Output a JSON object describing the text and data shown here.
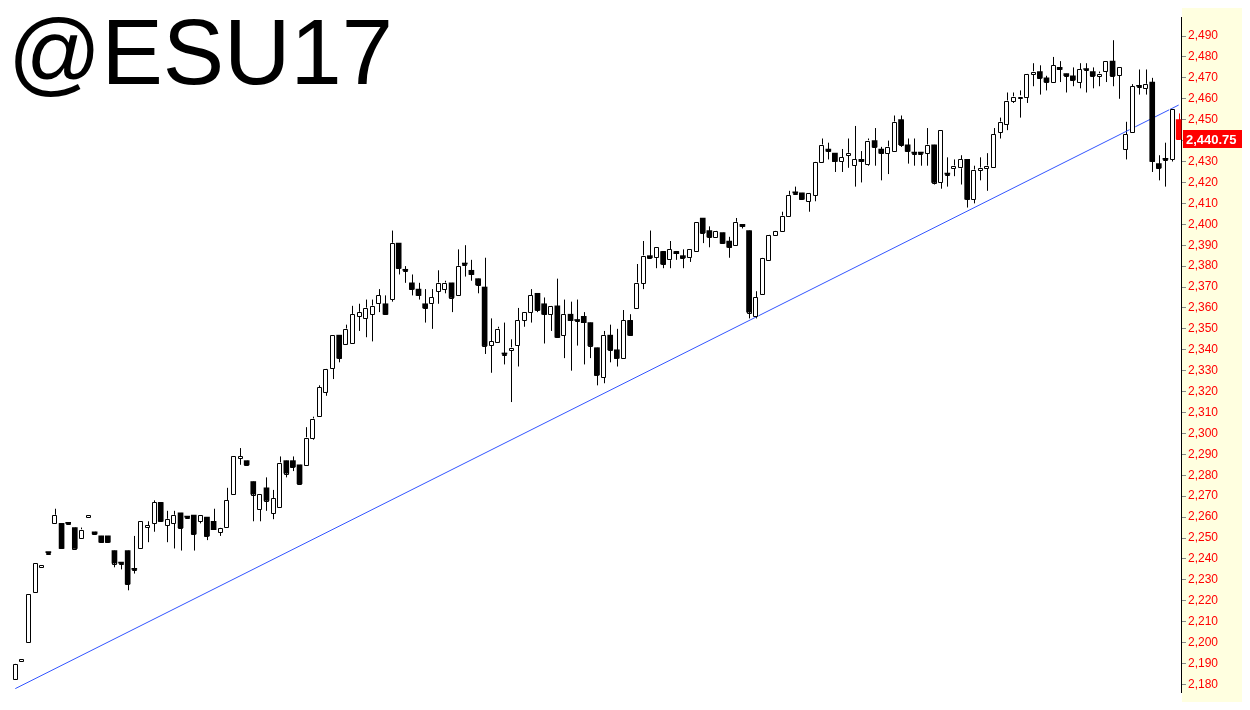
{
  "chart_data": {
    "type": "candlestick",
    "title": "@ESU17",
    "categories": [
      null,
      null,
      null,
      null,
      null,
      null,
      null,
      null,
      null,
      null,
      null,
      null,
      null,
      null,
      null,
      null,
      null,
      null,
      null,
      null,
      null,
      null,
      null,
      null,
      null,
      null,
      null,
      null,
      null,
      null,
      null,
      null,
      null,
      null,
      null,
      null,
      null,
      null,
      null,
      null,
      null,
      null,
      null,
      null,
      null,
      null,
      null,
      null,
      null,
      null,
      null,
      null,
      null,
      null,
      null,
      null,
      null,
      null,
      null,
      null,
      null,
      null,
      null,
      null,
      null,
      null,
      null,
      null,
      null,
      null,
      null,
      null,
      null,
      null,
      null,
      null,
      null,
      null,
      null,
      null,
      null,
      null,
      null,
      null,
      null,
      null,
      null,
      null,
      null,
      null,
      null,
      null,
      null,
      null,
      null,
      null,
      null,
      null,
      null,
      null,
      null,
      null,
      null,
      null,
      null,
      null,
      null,
      null,
      null,
      null,
      null,
      null,
      null,
      null,
      null,
      null,
      null,
      null,
      null,
      null,
      null,
      null,
      null,
      null,
      null,
      null,
      null,
      null,
      null,
      null,
      null,
      null,
      null,
      null,
      null,
      null,
      null,
      null,
      null,
      null,
      null,
      null,
      null,
      null,
      null,
      null,
      null,
      null,
      null,
      null,
      null,
      null,
      null,
      null,
      null,
      null,
      null,
      null,
      null,
      null,
      null,
      null,
      null,
      null,
      null,
      null,
      null,
      null,
      null,
      null,
      null,
      null,
      null,
      null,
      null,
      null,
      null
    ],
    "ohlc": [
      [
        2183,
        2190,
        2183,
        2190
      ],
      [
        2191,
        2192,
        2191,
        2192
      ],
      [
        2200,
        2223,
        2200,
        2223
      ],
      [
        2224,
        2238,
        2224,
        2238
      ],
      [
        2236,
        2237,
        2236,
        2237
      ],
      [
        2243,
        2243,
        2243,
        2243
      ],
      [
        2257,
        2264,
        2257,
        2261
      ],
      [
        2257,
        2257,
        2245,
        2245
      ],
      [
        2257,
        2257,
        2257,
        2257
      ],
      [
        2255,
        2255,
        2245,
        2245
      ],
      [
        2250,
        2255,
        2250,
        2254
      ],
      [
        2260,
        2261,
        2260,
        2261
      ],
      [
        2253,
        2253,
        2252,
        2252
      ],
      [
        2251,
        2251,
        2248,
        2248
      ],
      [
        2251,
        2251,
        2248,
        2248
      ],
      [
        2244,
        2244,
        2236,
        2238
      ],
      [
        2238,
        2238,
        2235,
        2238
      ],
      [
        2244,
        2244,
        2225,
        2228
      ],
      [
        2235,
        2251,
        2233,
        2235
      ],
      [
        2245,
        2258,
        2245,
        2258
      ],
      [
        2255,
        2258,
        2248,
        2256
      ],
      [
        2257,
        2268,
        2253,
        2267
      ],
      [
        2267,
        2267,
        2258,
        2258
      ],
      [
        2256,
        2263,
        2248,
        2259
      ],
      [
        2257,
        2263,
        2245,
        2261
      ],
      [
        2262,
        2262,
        2244,
        2255
      ],
      [
        2260,
        2260,
        2260,
        2260
      ],
      [
        2261,
        2261,
        2244,
        2252
      ],
      [
        2258,
        2261,
        2257,
        2261
      ],
      [
        2260,
        2260,
        2249,
        2251
      ],
      [
        2258,
        2264,
        2254,
        2254
      ],
      [
        2253,
        2255,
        2251,
        2255
      ],
      [
        2255,
        2274,
        2255,
        2268
      ],
      [
        2271,
        2289,
        2271,
        2289
      ],
      [
        2288,
        2293,
        2285,
        2289
      ],
      [
        2287,
        2287,
        2285,
        2285
      ],
      [
        2277,
        2277,
        2258,
        2271
      ],
      [
        2264,
        2271,
        2258,
        2271
      ],
      [
        2274,
        2279,
        2263,
        2268
      ],
      [
        2262,
        2273,
        2259,
        2269
      ],
      [
        2265,
        2289,
        2265,
        2286
      ],
      [
        2287,
        2287,
        2279,
        2281
      ],
      [
        2287,
        2289,
        2282,
        2284
      ],
      [
        2285,
        2285,
        2276,
        2276
      ],
      [
        2285,
        2303,
        2285,
        2298
      ],
      [
        2298,
        2308,
        2297,
        2307
      ],
      [
        2308,
        2323,
        2308,
        2322
      ],
      [
        2320,
        2331,
        2318,
        2331
      ],
      [
        2331,
        2347,
        2326,
        2347
      ],
      [
        2347,
        2347,
        2334,
        2336
      ],
      [
        2343,
        2352,
        2343,
        2350
      ],
      [
        2343,
        2361,
        2343,
        2357
      ],
      [
        2356,
        2362,
        2349,
        2358
      ],
      [
        2355,
        2364,
        2346,
        2360
      ],
      [
        2357,
        2364,
        2344,
        2361
      ],
      [
        2362,
        2369,
        2358,
        2366
      ],
      [
        2362,
        2366,
        2357,
        2357
      ],
      [
        2364,
        2397,
        2363,
        2391
      ],
      [
        2391,
        2391,
        2376,
        2379
      ],
      [
        2378,
        2380,
        2372,
        2378
      ],
      [
        2372,
        2376,
        2366,
        2369
      ],
      [
        2369,
        2372,
        2364,
        2366
      ],
      [
        2362,
        2369,
        2353,
        2360
      ],
      [
        2362,
        2369,
        2350,
        2365
      ],
      [
        2368,
        2378,
        2362,
        2372
      ],
      [
        2369,
        2373,
        2367,
        2372
      ],
      [
        2372,
        2372,
        2358,
        2365
      ],
      [
        2366,
        2388,
        2366,
        2380
      ],
      [
        2381,
        2390,
        2375,
        2381
      ],
      [
        2378,
        2383,
        2373,
        2376
      ],
      [
        2374,
        2374,
        2367,
        2371
      ],
      [
        2370,
        2384,
        2338,
        2342
      ],
      [
        2342,
        2355,
        2329,
        2344
      ],
      [
        2344,
        2351,
        2344,
        2350
      ],
      [
        2338,
        2353,
        2333,
        2338
      ],
      [
        2340,
        2345,
        2315,
        2341
      ],
      [
        2342,
        2360,
        2332,
        2354
      ],
      [
        2354,
        2358,
        2351,
        2358
      ],
      [
        2358,
        2369,
        2353,
        2366
      ],
      [
        2367,
        2367,
        2358,
        2359
      ],
      [
        2362,
        2365,
        2343,
        2357
      ],
      [
        2357,
        2361,
        2349,
        2361
      ],
      [
        2361,
        2374,
        2346,
        2346
      ],
      [
        2347,
        2364,
        2336,
        2357
      ],
      [
        2357,
        2363,
        2330,
        2354
      ],
      [
        2354,
        2364,
        2342,
        2354
      ],
      [
        2356,
        2358,
        2333,
        2353
      ],
      [
        2353,
        2353,
        2336,
        2342
      ],
      [
        2341,
        2341,
        2323,
        2328
      ],
      [
        2327,
        2349,
        2324,
        2347
      ],
      [
        2347,
        2352,
        2334,
        2340
      ],
      [
        2340,
        2350,
        2332,
        2336
      ],
      [
        2336,
        2359,
        2336,
        2354
      ],
      [
        2354,
        2357,
        2347,
        2347
      ],
      [
        2360,
        2381,
        2360,
        2372
      ],
      [
        2372,
        2392,
        2369,
        2385
      ],
      [
        2385,
        2397,
        2384,
        2384
      ],
      [
        2384,
        2389,
        2379,
        2389
      ],
      [
        2387,
        2387,
        2379,
        2381
      ],
      [
        2383,
        2392,
        2379,
        2388
      ],
      [
        2387,
        2387,
        2383,
        2386
      ],
      [
        2385,
        2388,
        2379,
        2384
      ],
      [
        2384,
        2388,
        2382,
        2388
      ],
      [
        2387,
        2401,
        2387,
        2401
      ],
      [
        2403,
        2403,
        2391,
        2396
      ],
      [
        2397,
        2399,
        2389,
        2394
      ],
      [
        2394,
        2397,
        2394,
        2397
      ],
      [
        2396,
        2396,
        2391,
        2391
      ],
      [
        2392,
        2394,
        2384,
        2389
      ],
      [
        2390,
        2403,
        2390,
        2401
      ],
      [
        2400,
        2400,
        2398,
        2399
      ],
      [
        2397,
        2397,
        2355,
        2358
      ],
      [
        2356,
        2368,
        2355,
        2365
      ],
      [
        2367,
        2384,
        2367,
        2384
      ],
      [
        2383,
        2395,
        2383,
        2395
      ],
      [
        2395,
        2397,
        2395,
        2397
      ],
      [
        2397,
        2406,
        2397,
        2404
      ],
      [
        2404,
        2416,
        2404,
        2414
      ],
      [
        2415,
        2418,
        2415,
        2415
      ],
      [
        2415,
        2415,
        2412,
        2412
      ],
      [
        2411,
        2415,
        2406,
        2415
      ],
      [
        2414,
        2430,
        2411,
        2430
      ],
      [
        2430,
        2441,
        2430,
        2438
      ],
      [
        2436,
        2439,
        2431,
        2435
      ],
      [
        2434,
        2434,
        2425,
        2430
      ],
      [
        2430,
        2436,
        2425,
        2432
      ],
      [
        2433,
        2441,
        2427,
        2434
      ],
      [
        2428,
        2447,
        2418,
        2431
      ],
      [
        2431,
        2435,
        2420,
        2430
      ],
      [
        2429,
        2441,
        2428,
        2440
      ],
      [
        2440,
        2446,
        2428,
        2437
      ],
      [
        2436,
        2437,
        2421,
        2434
      ],
      [
        2434,
        2440,
        2424,
        2437
      ],
      [
        2435,
        2452,
        2435,
        2449
      ],
      [
        2450,
        2452,
        2437,
        2438
      ],
      [
        2438,
        2441,
        2429,
        2435
      ],
      [
        2434,
        2441,
        2428,
        2434
      ],
      [
        2434,
        2434,
        2428,
        2434
      ],
      [
        2434,
        2446,
        2428,
        2438
      ],
      [
        2438,
        2438,
        2419,
        2420
      ],
      [
        2420,
        2445,
        2417,
        2445
      ],
      [
        2424,
        2432,
        2418,
        2424
      ],
      [
        2427,
        2431,
        2423,
        2428
      ],
      [
        2427,
        2433,
        2419,
        2431
      ],
      [
        2431,
        2431,
        2408,
        2412
      ],
      [
        2412,
        2428,
        2410,
        2426
      ],
      [
        2426,
        2432,
        2421,
        2427
      ],
      [
        2427,
        2434,
        2416,
        2428
      ],
      [
        2427,
        2446,
        2427,
        2443
      ],
      [
        2444,
        2451,
        2441,
        2449
      ],
      [
        2448,
        2463,
        2445,
        2459
      ],
      [
        2459,
        2463,
        2458,
        2461
      ],
      [
        2461,
        2464,
        2451,
        2461
      ],
      [
        2461,
        2472,
        2458,
        2472
      ],
      [
        2472,
        2477,
        2466,
        2473
      ],
      [
        2473,
        2476,
        2462,
        2470
      ],
      [
        2470,
        2471,
        2464,
        2468
      ],
      [
        2468,
        2480,
        2468,
        2476
      ],
      [
        2475,
        2478,
        2468,
        2474
      ],
      [
        2472,
        2472,
        2463,
        2471
      ],
      [
        2471,
        2475,
        2466,
        2469
      ],
      [
        2468,
        2477,
        2465,
        2474
      ],
      [
        2474,
        2477,
        2463,
        2474
      ],
      [
        2473,
        2475,
        2465,
        2471
      ],
      [
        2471,
        2473,
        2466,
        2472
      ],
      [
        2473,
        2478,
        2468,
        2478
      ],
      [
        2478,
        2488,
        2466,
        2471
      ],
      [
        2471,
        2475,
        2460,
        2475
      ],
      [
        2436,
        2449,
        2431,
        2443
      ],
      [
        2444,
        2467,
        2444,
        2466
      ],
      [
        2466,
        2474,
        2462,
        2466
      ],
      [
        2465,
        2474,
        2462,
        2467
      ],
      [
        2468,
        2470,
        2425,
        2430
      ],
      [
        2429,
        2433,
        2421,
        2427
      ],
      [
        2431,
        2439,
        2418,
        2431
      ],
      [
        2431,
        2455,
        2430,
        2455
      ],
      [
        2450,
        2453,
        2440.75,
        2440.75
      ]
    ],
    "colors": [
      "#ffffff",
      "#ffffff",
      "#ffffff",
      "#ffffff",
      "#ffffff",
      "#000000",
      "#ffffff",
      "#000000",
      "#000000",
      "#000000",
      "#ffffff",
      "#ffffff",
      "#000000",
      "#000000",
      "#000000",
      "#000000",
      "#000000",
      "#000000",
      "#000000",
      "#ffffff",
      "#ffffff",
      "#ffffff",
      "#000000",
      "#ffffff",
      "#ffffff",
      "#000000",
      "#000000",
      "#000000",
      "#ffffff",
      "#000000",
      "#000000",
      "#ffffff",
      "#ffffff",
      "#ffffff",
      "#ffffff",
      "#000000",
      "#000000",
      "#ffffff",
      "#000000",
      "#ffffff",
      "#ffffff",
      "#000000",
      "#000000",
      "#000000",
      "#ffffff",
      "#ffffff",
      "#ffffff",
      "#ffffff",
      "#ffffff",
      "#000000",
      "#ffffff",
      "#ffffff",
      "#ffffff",
      "#ffffff",
      "#ffffff",
      "#ffffff",
      "#000000",
      "#ffffff",
      "#000000",
      "#000000",
      "#000000",
      "#000000",
      "#000000",
      "#ffffff",
      "#ffffff",
      "#ffffff",
      "#000000",
      "#ffffff",
      "#000000",
      "#000000",
      "#000000",
      "#000000",
      "#ffffff",
      "#ffffff",
      "#000000",
      "#ffffff",
      "#ffffff",
      "#ffffff",
      "#ffffff",
      "#000000",
      "#000000",
      "#ffffff",
      "#000000",
      "#ffffff",
      "#000000",
      "#000000",
      "#000000",
      "#000000",
      "#000000",
      "#ffffff",
      "#000000",
      "#000000",
      "#ffffff",
      "#000000",
      "#ffffff",
      "#ffffff",
      "#000000",
      "#ffffff",
      "#000000",
      "#ffffff",
      "#000000",
      "#000000",
      "#ffffff",
      "#ffffff",
      "#000000",
      "#000000",
      "#ffffff",
      "#000000",
      "#000000",
      "#ffffff",
      "#000000",
      "#000000",
      "#ffffff",
      "#ffffff",
      "#ffffff",
      "#ffffff",
      "#ffffff",
      "#ffffff",
      "#000000",
      "#000000",
      "#ffffff",
      "#ffffff",
      "#ffffff",
      "#000000",
      "#000000",
      "#ffffff",
      "#ffffff",
      "#ffffff",
      "#000000",
      "#ffffff",
      "#000000",
      "#000000",
      "#ffffff",
      "#ffffff",
      "#000000",
      "#000000",
      "#000000",
      "#000000",
      "#ffffff",
      "#000000",
      "#ffffff",
      "#000000",
      "#ffffff",
      "#ffffff",
      "#000000",
      "#ffffff",
      "#ffffff",
      "#ffffff",
      "#ffffff",
      "#ffffff",
      "#ffffff",
      "#ffffff",
      "#ffffff",
      "#ffffff",
      "#ffffff",
      "#000000",
      "#000000",
      "#ffffff",
      "#000000",
      "#000000",
      "#000000",
      "#ffffff",
      "#000000",
      "#000000",
      "#ffffff",
      "#ffffff",
      "#000000",
      "#ffffff",
      "#ffffff",
      "#ffffff",
      "#000000",
      "#ffffff",
      "#000000",
      "#000000",
      "#000000",
      "#ffffff",
      "#ff0000"
    ],
    "series": [
      {
        "type": "line",
        "color": "#3355ff",
        "values": [
          2178,
          null,
          null,
          null,
          null,
          null,
          null,
          null,
          null,
          null,
          null,
          null,
          null,
          null,
          null,
          null,
          null,
          null,
          null,
          null,
          null,
          null,
          null,
          null,
          null,
          null,
          null,
          null,
          null,
          null,
          null,
          null,
          null,
          null,
          null,
          null,
          null,
          null,
          null,
          null,
          null,
          null,
          null,
          null,
          null,
          null,
          null,
          null,
          null,
          null,
          null,
          null,
          null,
          null,
          null,
          null,
          null,
          null,
          null,
          null,
          null,
          null,
          null,
          null,
          null,
          null,
          null,
          null,
          null,
          null,
          null,
          null,
          null,
          null,
          null,
          null,
          null,
          null,
          null,
          null,
          null,
          null,
          null,
          null,
          null,
          null,
          null,
          null,
          null,
          null,
          null,
          null,
          null,
          null,
          null,
          null,
          null,
          null,
          null,
          null,
          null,
          null,
          null,
          null,
          null,
          null,
          null,
          null,
          null,
          null,
          null,
          null,
          null,
          null,
          null,
          null,
          null,
          null,
          null,
          null,
          null,
          null,
          null,
          null,
          null,
          null,
          null,
          null,
          null,
          null,
          null,
          null,
          null,
          null,
          null,
          null,
          null,
          null,
          null,
          null,
          null,
          null,
          null,
          null,
          null,
          null,
          null,
          null,
          null,
          null,
          null,
          null,
          null,
          null,
          null,
          null,
          null,
          null,
          null,
          null,
          null,
          null,
          null,
          null,
          null,
          null,
          null,
          null,
          null,
          null,
          null,
          null,
          null,
          null,
          null,
          null,
          2457
        ]
      }
    ],
    "ylim": [
      2176,
      2499
    ],
    "yticks": [
      {
        "value": 2180,
        "label": "2,180"
      },
      {
        "value": 2190,
        "label": "2,190"
      },
      {
        "value": 2200,
        "label": "2,200"
      },
      {
        "value": 2210,
        "label": "2,210"
      },
      {
        "value": 2220,
        "label": "2,220"
      },
      {
        "value": 2230,
        "label": "2,230"
      },
      {
        "value": 2240,
        "label": "2,240"
      },
      {
        "value": 2250,
        "label": "2,250"
      },
      {
        "value": 2260,
        "label": "2,260"
      },
      {
        "value": 2270,
        "label": "2,270"
      },
      {
        "value": 2280,
        "label": "2,280"
      },
      {
        "value": 2290,
        "label": "2,290"
      },
      {
        "value": 2300,
        "label": "2,300"
      },
      {
        "value": 2310,
        "label": "2,310"
      },
      {
        "value": 2320,
        "label": "2,320"
      },
      {
        "value": 2330,
        "label": "2,330"
      },
      {
        "value": 2340,
        "label": "2,340"
      },
      {
        "value": 2350,
        "label": "2,350"
      },
      {
        "value": 2360,
        "label": "2,360"
      },
      {
        "value": 2370,
        "label": "2,370"
      },
      {
        "value": 2380,
        "label": "2,380"
      },
      {
        "value": 2390,
        "label": "2,390"
      },
      {
        "value": 2400,
        "label": "2,400"
      },
      {
        "value": 2410,
        "label": "2,410"
      },
      {
        "value": 2420,
        "label": "2,420"
      },
      {
        "value": 2430,
        "label": "2,430"
      },
      {
        "value": 2440,
        "label": null
      },
      {
        "value": 2450,
        "label": "2,450"
      },
      {
        "value": 2460,
        "label": "2,460"
      },
      {
        "value": 2470,
        "label": "2,470"
      },
      {
        "value": 2480,
        "label": "2,480"
      },
      {
        "value": 2490,
        "label": "2,490"
      }
    ],
    "annotations": [
      "2,440.75"
    ],
    "tick_labels": "y",
    "grid": false,
    "legend": false,
    "marker": "none"
  }
}
